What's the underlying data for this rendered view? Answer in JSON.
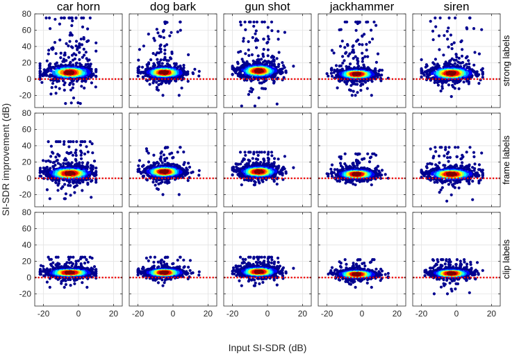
{
  "chart_data": {
    "type": "scatter",
    "subtype": "density-colored scatter grid",
    "xlabel": "Input SI-SDR (dB)",
    "ylabel": "SI-SDR improvement (dB)",
    "xlim": [
      -25,
      25
    ],
    "ylim": [
      -35,
      80
    ],
    "xticks": [
      -20,
      0,
      20
    ],
    "yticks": [
      -20,
      0,
      20,
      40,
      60,
      80
    ],
    "xtick_labels": [
      "-20",
      "0",
      "20"
    ],
    "ytick_labels": [
      "-20",
      "0",
      "20",
      "40",
      "60",
      "80"
    ],
    "grid": true,
    "reference_line": {
      "y": 0,
      "color": "#ee0000",
      "style": "dotted"
    },
    "columns": [
      "car horn",
      "dog bark",
      "gun shot",
      "jackhammer",
      "siren"
    ],
    "rows": [
      "strong labels",
      "frame labels",
      "clip labels"
    ],
    "colormap": [
      "#00008f",
      "#0000ff",
      "#0080ff",
      "#00ffff",
      "#80ff80",
      "#ffff00",
      "#ff8000",
      "#ff0000",
      "#800000"
    ],
    "panels": [
      [
        {
          "center_x": -5,
          "center_y": 8,
          "spread_x": 7,
          "spread_y": 8,
          "x_range": [
            -22,
            10
          ],
          "y_range": [
            -30,
            75
          ]
        },
        {
          "center_x": -5,
          "center_y": 8,
          "spread_x": 6,
          "spread_y": 7,
          "x_range": [
            -20,
            15
          ],
          "y_range": [
            -20,
            70
          ]
        },
        {
          "center_x": -5,
          "center_y": 10,
          "spread_x": 6,
          "spread_y": 8,
          "x_range": [
            -20,
            15
          ],
          "y_range": [
            -33,
            70
          ]
        },
        {
          "center_x": -3,
          "center_y": 6,
          "spread_x": 6,
          "spread_y": 6,
          "x_range": [
            -20,
            15
          ],
          "y_range": [
            -20,
            70
          ]
        },
        {
          "center_x": -3,
          "center_y": 7,
          "spread_x": 7,
          "spread_y": 8,
          "x_range": [
            -20,
            15
          ],
          "y_range": [
            -30,
            75
          ]
        }
      ],
      [
        {
          "center_x": -5,
          "center_y": 6,
          "spread_x": 7,
          "spread_y": 8,
          "x_range": [
            -22,
            10
          ],
          "y_range": [
            -25,
            45
          ]
        },
        {
          "center_x": -5,
          "center_y": 8,
          "spread_x": 6,
          "spread_y": 7,
          "x_range": [
            -20,
            15
          ],
          "y_range": [
            -20,
            38
          ]
        },
        {
          "center_x": -5,
          "center_y": 8,
          "spread_x": 6,
          "spread_y": 7,
          "x_range": [
            -20,
            15
          ],
          "y_range": [
            -8,
            32
          ]
        },
        {
          "center_x": -3,
          "center_y": 5,
          "spread_x": 6,
          "spread_y": 6,
          "x_range": [
            -20,
            15
          ],
          "y_range": [
            -8,
            30
          ]
        },
        {
          "center_x": -3,
          "center_y": 5,
          "spread_x": 7,
          "spread_y": 7,
          "x_range": [
            -20,
            15
          ],
          "y_range": [
            -28,
            38
          ]
        }
      ],
      [
        {
          "center_x": -5,
          "center_y": 6,
          "spread_x": 7,
          "spread_y": 5,
          "x_range": [
            -22,
            10
          ],
          "y_range": [
            -12,
            25
          ]
        },
        {
          "center_x": -5,
          "center_y": 6,
          "spread_x": 6,
          "spread_y": 5,
          "x_range": [
            -20,
            15
          ],
          "y_range": [
            -10,
            25
          ]
        },
        {
          "center_x": -5,
          "center_y": 7,
          "spread_x": 6,
          "spread_y": 6,
          "x_range": [
            -20,
            15
          ],
          "y_range": [
            -10,
            25
          ]
        },
        {
          "center_x": -3,
          "center_y": 4,
          "spread_x": 6,
          "spread_y": 5,
          "x_range": [
            -20,
            15
          ],
          "y_range": [
            -12,
            22
          ]
        },
        {
          "center_x": -3,
          "center_y": 5,
          "spread_x": 6,
          "spread_y": 5,
          "x_range": [
            -18,
            15
          ],
          "y_range": [
            -20,
            22
          ]
        }
      ]
    ]
  }
}
